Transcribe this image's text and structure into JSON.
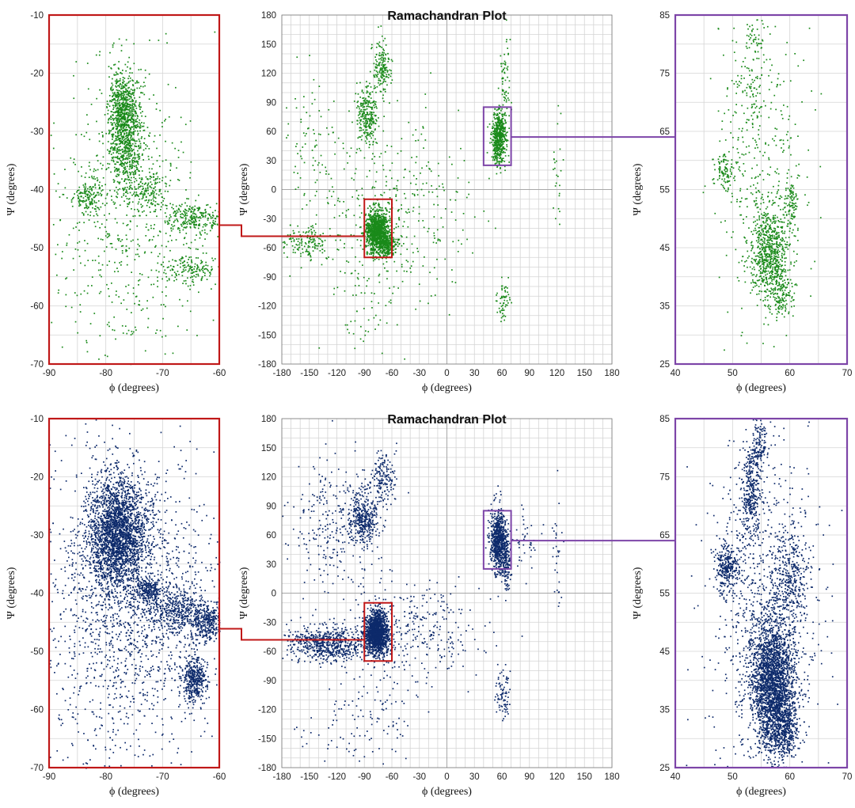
{
  "colors": {
    "top_points": "#1a8a1a",
    "bottom_points": "#0d2a6b",
    "grid": "#d4d4d4",
    "red_frame": "#c01818",
    "purple_frame": "#7d45a8"
  },
  "chart_data": [
    {
      "id": "top-left",
      "type": "scatter",
      "row": "top",
      "color_key": "top_points",
      "frame": "red_frame",
      "title": "",
      "xlabel": "ϕ (degrees)",
      "ylabel": "Ψ (degrees)",
      "xlim": [
        -90,
        -60
      ],
      "ylim": [
        -70,
        -10
      ],
      "xticks": [
        -90,
        -80,
        -70,
        -60
      ],
      "yticks": [
        -70,
        -60,
        -50,
        -40,
        -30,
        -20,
        -10
      ],
      "xgrid_step": 5,
      "ygrid_step": 5,
      "clusters": [
        {
          "x": -76.5,
          "y": -30,
          "sx": 1.5,
          "sy": 5,
          "n": 900
        },
        {
          "x": -77.5,
          "y": -25,
          "sx": 1.0,
          "sy": 2.5,
          "n": 250
        },
        {
          "x": -83,
          "y": -41,
          "sx": 1.3,
          "sy": 1.5,
          "n": 140
        },
        {
          "x": -72.5,
          "y": -40,
          "sx": 1.8,
          "sy": 1.5,
          "n": 140
        },
        {
          "x": -64.5,
          "y": -45,
          "sx": 2.5,
          "sy": 1.5,
          "n": 260
        },
        {
          "x": -65,
          "y": -53.5,
          "sx": 2.5,
          "sy": 1.2,
          "n": 150
        },
        {
          "x": -77,
          "y": -45,
          "sx": 8,
          "sy": 13,
          "n": 650
        }
      ]
    },
    {
      "id": "top-center",
      "type": "scatter",
      "row": "top",
      "color_key": "top_points",
      "title": "Ramachandran Plot",
      "xlabel": "ϕ (degrees)",
      "ylabel": "Ψ (degrees)",
      "xlim": [
        -180,
        180
      ],
      "ylim": [
        -180,
        180
      ],
      "xticks": [
        -180,
        -150,
        -120,
        -90,
        -60,
        -30,
        0,
        30,
        60,
        90,
        120,
        150,
        180
      ],
      "yticks": [
        -180,
        -150,
        -120,
        -90,
        -60,
        -30,
        0,
        30,
        60,
        90,
        120,
        150,
        180
      ],
      "xgrid_step": 10,
      "ygrid_step": 10,
      "zoom_boxes": [
        {
          "x": [
            -90,
            -60
          ],
          "y": [
            -70,
            -10
          ],
          "frame": "red_frame"
        },
        {
          "x": [
            40,
            70
          ],
          "y": [
            25,
            85
          ],
          "frame": "purple_frame"
        }
      ],
      "clusters": [
        {
          "x": -77,
          "y": -42,
          "sx": 6,
          "sy": 11,
          "n": 1100
        },
        {
          "x": -65,
          "y": -57,
          "sx": 5,
          "sy": 6,
          "n": 220
        },
        {
          "x": -88,
          "y": 75,
          "sx": 6,
          "sy": 15,
          "n": 260
        },
        {
          "x": -72,
          "y": 125,
          "sx": 5,
          "sy": 15,
          "n": 170
        },
        {
          "x": 56,
          "y": 55,
          "sx": 4,
          "sy": 14,
          "n": 520
        },
        {
          "x": 63,
          "y": 110,
          "sx": 3,
          "sy": 25,
          "n": 70
        },
        {
          "x": 60,
          "y": -115,
          "sx": 4,
          "sy": 12,
          "n": 60
        },
        {
          "x": -155,
          "y": -55,
          "sx": 15,
          "sy": 8,
          "n": 150
        },
        {
          "x": -150,
          "y": 50,
          "sx": 20,
          "sy": 30,
          "n": 90
        },
        {
          "x": -60,
          "y": -20,
          "sx": 45,
          "sy": 45,
          "n": 350
        },
        {
          "x": -85,
          "y": -125,
          "sx": 18,
          "sy": 30,
          "n": 60
        },
        {
          "x": 120,
          "y": 25,
          "sx": 3,
          "sy": 30,
          "n": 25
        }
      ]
    },
    {
      "id": "top-right",
      "type": "scatter",
      "row": "top",
      "color_key": "top_points",
      "frame": "purple_frame",
      "title": "",
      "xlabel": "ϕ (degrees)",
      "ylabel": "Ψ (degrees)",
      "xlim": [
        40,
        70
      ],
      "ylim": [
        25,
        85
      ],
      "xticks": [
        40,
        50,
        60,
        70
      ],
      "yticks": [
        25,
        35,
        45,
        55,
        65,
        75,
        85
      ],
      "xgrid_step": 5,
      "ygrid_step": 5,
      "clusters": [
        {
          "x": 56.5,
          "y": 44,
          "sx": 1.6,
          "sy": 4,
          "n": 700
        },
        {
          "x": 58.5,
          "y": 37,
          "sx": 1.0,
          "sy": 2,
          "n": 120
        },
        {
          "x": 48.5,
          "y": 58.5,
          "sx": 1.0,
          "sy": 1.5,
          "n": 90
        },
        {
          "x": 60,
          "y": 53,
          "sx": 0.6,
          "sy": 2,
          "n": 80
        },
        {
          "x": 53,
          "y": 73,
          "sx": 1.5,
          "sy": 3,
          "n": 70
        },
        {
          "x": 53.5,
          "y": 81,
          "sx": 1.0,
          "sy": 2.5,
          "n": 50
        },
        {
          "x": 54.5,
          "y": 58,
          "sx": 4,
          "sy": 13,
          "n": 380
        }
      ]
    },
    {
      "id": "bottom-left",
      "type": "scatter",
      "row": "bottom",
      "color_key": "bottom_points",
      "frame": "red_frame",
      "title": "",
      "xlabel": "ϕ (degrees)",
      "ylabel": "Ψ (degrees)",
      "xlim": [
        -90,
        -60
      ],
      "ylim": [
        -70,
        -10
      ],
      "xticks": [
        -90,
        -80,
        -70,
        -60
      ],
      "yticks": [
        -70,
        -60,
        -50,
        -40,
        -30,
        -20,
        -10
      ],
      "xgrid_step": 5,
      "ygrid_step": 5,
      "clusters": [
        {
          "x": -78,
          "y": -30,
          "sx": 2.6,
          "sy": 5,
          "n": 2400
        },
        {
          "x": -72.5,
          "y": -39.5,
          "sx": 1.2,
          "sy": 1.2,
          "n": 250
        },
        {
          "x": -67,
          "y": -43,
          "sx": 2.8,
          "sy": 2,
          "n": 450
        },
        {
          "x": -62,
          "y": -45,
          "sx": 1.2,
          "sy": 1.5,
          "n": 280
        },
        {
          "x": -64.5,
          "y": -54.5,
          "sx": 1.1,
          "sy": 2,
          "n": 380
        },
        {
          "x": -76,
          "y": -42,
          "sx": 8,
          "sy": 14,
          "n": 1700
        }
      ]
    },
    {
      "id": "bottom-center",
      "type": "scatter",
      "row": "bottom",
      "color_key": "bottom_points",
      "title": "Ramachandran Plot",
      "xlabel": "ϕ (degrees)",
      "ylabel": "Ψ (degrees)",
      "xlim": [
        -180,
        180
      ],
      "ylim": [
        -180,
        180
      ],
      "xticks": [
        -180,
        -150,
        -120,
        -90,
        -60,
        -30,
        0,
        30,
        60,
        90,
        120,
        150,
        180
      ],
      "yticks": [
        -180,
        -150,
        -120,
        -90,
        -60,
        -30,
        0,
        30,
        60,
        90,
        120,
        150,
        180
      ],
      "xgrid_step": 10,
      "ygrid_step": 10,
      "zoom_boxes": [
        {
          "x": [
            -90,
            -60
          ],
          "y": [
            -70,
            -10
          ],
          "frame": "red_frame"
        },
        {
          "x": [
            40,
            70
          ],
          "y": [
            25,
            85
          ],
          "frame": "purple_frame"
        }
      ],
      "clusters": [
        {
          "x": -77,
          "y": -40,
          "sx": 6,
          "sy": 11,
          "n": 1500
        },
        {
          "x": -130,
          "y": -52,
          "sx": 22,
          "sy": 9,
          "n": 650
        },
        {
          "x": -92,
          "y": 78,
          "sx": 8,
          "sy": 14,
          "n": 380
        },
        {
          "x": -70,
          "y": 120,
          "sx": 6,
          "sy": 14,
          "n": 160
        },
        {
          "x": 56,
          "y": 55,
          "sx": 4.5,
          "sy": 16,
          "n": 750
        },
        {
          "x": 65,
          "y": 30,
          "sx": 2,
          "sy": 14,
          "n": 120
        },
        {
          "x": 60,
          "y": -105,
          "sx": 4,
          "sy": 16,
          "n": 80
        },
        {
          "x": -125,
          "y": 70,
          "sx": 25,
          "sy": 35,
          "n": 260
        },
        {
          "x": -40,
          "y": -40,
          "sx": 35,
          "sy": 25,
          "n": 320
        },
        {
          "x": -90,
          "y": -130,
          "sx": 30,
          "sy": 25,
          "n": 120
        },
        {
          "x": 120,
          "y": 30,
          "sx": 3,
          "sy": 25,
          "n": 30
        },
        {
          "x": 85,
          "y": 50,
          "sx": 10,
          "sy": 15,
          "n": 40
        }
      ]
    },
    {
      "id": "bottom-right",
      "type": "scatter",
      "row": "bottom",
      "color_key": "bottom_points",
      "frame": "purple_frame",
      "title": "",
      "xlabel": "ϕ (degrees)",
      "ylabel": "Ψ (degrees)",
      "xlim": [
        40,
        70
      ],
      "ylim": [
        25,
        85
      ],
      "xticks": [
        40,
        50,
        60,
        70
      ],
      "yticks": [
        25,
        35,
        45,
        55,
        65,
        75,
        85
      ],
      "xgrid_step": 5,
      "ygrid_step": 5,
      "clusters": [
        {
          "x": 57,
          "y": 40,
          "sx": 2.0,
          "sy": 5.5,
          "n": 2300
        },
        {
          "x": 58.5,
          "y": 32,
          "sx": 1.5,
          "sy": 3,
          "n": 500
        },
        {
          "x": 49,
          "y": 59.5,
          "sx": 1.0,
          "sy": 2,
          "n": 280
        },
        {
          "x": 53,
          "y": 72,
          "sx": 0.8,
          "sy": 4,
          "n": 300
        },
        {
          "x": 54.5,
          "y": 80,
          "sx": 0.8,
          "sy": 3,
          "n": 150
        },
        {
          "x": 60,
          "y": 58,
          "sx": 1.5,
          "sy": 4,
          "n": 280
        },
        {
          "x": 55.5,
          "y": 55,
          "sx": 5,
          "sy": 14,
          "n": 900
        }
      ]
    }
  ]
}
